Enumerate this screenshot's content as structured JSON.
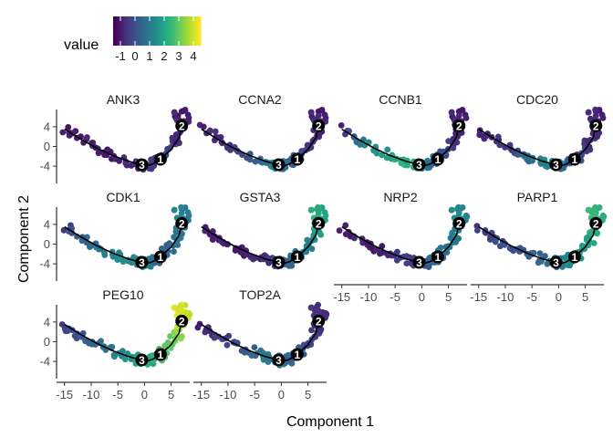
{
  "chart_data": {
    "type": "scatter",
    "xlabel": "Component 1",
    "ylabel": "Component 2",
    "xlim": [
      -16.5,
      8.5
    ],
    "ylim": [
      -7.5,
      7.5
    ],
    "x_ticks": [
      -15,
      -10,
      -5,
      0,
      5
    ],
    "x_tick_labels": [
      "-15",
      "-10",
      "-5",
      "0",
      "5"
    ],
    "y_ticks": [
      4,
      0,
      -4
    ],
    "y_tick_labels": [
      "4",
      "0",
      "-4"
    ],
    "legend": {
      "title": "value",
      "position": "top-left",
      "colormap": "viridis",
      "range": [
        -1.5,
        4.5
      ],
      "ticks": [
        -1,
        0,
        1,
        2,
        3,
        4
      ],
      "tick_labels": [
        "-1",
        "0",
        "1",
        "2",
        "3",
        "4"
      ]
    },
    "trajectory": [
      [
        -15,
        3.5
      ],
      [
        -12,
        1.5
      ],
      [
        -9,
        -0.3
      ],
      [
        -6,
        -1.8
      ],
      [
        -3,
        -3.0
      ],
      [
        -1,
        -3.6
      ],
      [
        0.5,
        -3.9
      ],
      [
        1.5,
        -3.6
      ],
      [
        3,
        -2.6
      ],
      [
        5,
        -0.6
      ],
      [
        6.5,
        1.8
      ],
      [
        7,
        4.2
      ]
    ],
    "branch_points": [
      {
        "label": "1",
        "x": 3.0,
        "y": -2.6
      },
      {
        "label": "2",
        "x": 7.0,
        "y": 4.2
      },
      {
        "label": "3",
        "x": -0.5,
        "y": -3.7
      }
    ],
    "panels": [
      {
        "gene": "ANK3",
        "expression": [
          -1,
          -1,
          -1,
          -1,
          -0.8,
          -0.8,
          -0.5,
          -0.6,
          -0.5,
          -0.3,
          -0.8,
          -1
        ]
      },
      {
        "gene": "CCNA2",
        "expression": [
          -1,
          -0.8,
          -0.5,
          0.2,
          0.8,
          1.2,
          0.8,
          0.5,
          0.2,
          -0.3,
          -0.8,
          -1
        ]
      },
      {
        "gene": "CCNB1",
        "expression": [
          -0.8,
          0.5,
          1.5,
          2.0,
          2.3,
          2.0,
          1.5,
          0.8,
          0.3,
          -0.3,
          -0.8,
          -1
        ]
      },
      {
        "gene": "CDC20",
        "expression": [
          -1,
          -0.8,
          -0.3,
          0.5,
          1.0,
          1.3,
          1.0,
          0.5,
          0.0,
          -0.5,
          -0.8,
          -1
        ]
      },
      {
        "gene": "CDK1",
        "expression": [
          -0.5,
          0.3,
          0.8,
          1.2,
          1.5,
          1.3,
          1.0,
          0.5,
          0.3,
          0.5,
          0.8,
          1.0
        ]
      },
      {
        "gene": "GSTA3",
        "expression": [
          -1,
          -1,
          -1,
          -1,
          -0.8,
          -0.5,
          0.0,
          0.5,
          0.8,
          1.0,
          1.5,
          2.0
        ]
      },
      {
        "gene": "NRP2",
        "expression": [
          -1,
          -1,
          -1,
          -0.8,
          -0.5,
          -0.3,
          0.0,
          0.3,
          0.5,
          0.8,
          1.0,
          1.2
        ]
      },
      {
        "gene": "PARP1",
        "expression": [
          -0.5,
          -0.3,
          0.0,
          0.3,
          0.5,
          0.8,
          1.0,
          1.2,
          1.5,
          1.8,
          2.0,
          2.3
        ]
      },
      {
        "gene": "PEG10",
        "expression": [
          -0.5,
          0.0,
          0.5,
          1.0,
          1.5,
          1.8,
          2.0,
          2.3,
          2.6,
          3.0,
          3.5,
          4.0
        ]
      },
      {
        "gene": "TOP2A",
        "expression": [
          -1,
          -0.5,
          -0.2,
          0.3,
          0.8,
          1.0,
          0.8,
          0.5,
          0.2,
          -0.2,
          -0.5,
          -0.8
        ]
      }
    ]
  }
}
